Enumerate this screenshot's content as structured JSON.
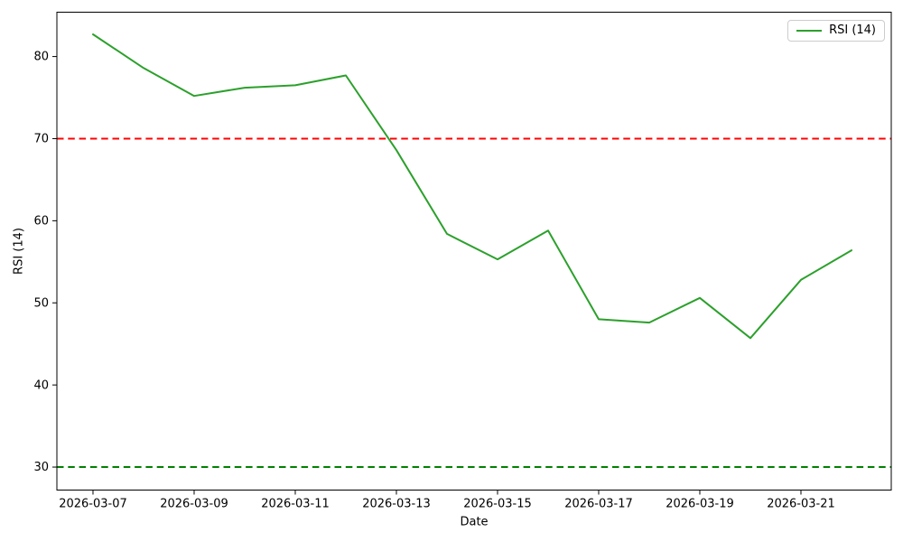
{
  "chart_data": {
    "type": "line",
    "title": "",
    "xlabel": "Date",
    "ylabel": "RSI (14)",
    "x": [
      "2026-03-07",
      "2026-03-08",
      "2026-03-09",
      "2026-03-10",
      "2026-03-11",
      "2026-03-12",
      "2026-03-13",
      "2026-03-14",
      "2026-03-15",
      "2026-03-16",
      "2026-03-17",
      "2026-03-18",
      "2026-03-19",
      "2026-03-20",
      "2026-03-21",
      "2026-03-22"
    ],
    "series": [
      {
        "name": "RSI (14)",
        "color": "#2ca02c",
        "style": "solid",
        "values": [
          82.7,
          78.6,
          75.2,
          76.2,
          76.5,
          77.7,
          68.6,
          58.4,
          55.3,
          58.8,
          48.0,
          47.6,
          50.6,
          45.7,
          52.8,
          56.4
        ]
      }
    ],
    "hlines": [
      {
        "name": "overbought-level",
        "value": 70,
        "color": "#ff0000",
        "style": "dashed"
      },
      {
        "name": "oversold-level",
        "value": 30,
        "color": "#008000",
        "style": "dashed"
      }
    ],
    "yticks": [
      30,
      40,
      50,
      60,
      70,
      80
    ],
    "xticks": [
      "2026-03-07",
      "2026-03-09",
      "2026-03-11",
      "2026-03-13",
      "2026-03-15",
      "2026-03-17",
      "2026-03-19",
      "2026-03-21"
    ],
    "ylim": [
      27.2,
      85.4
    ],
    "grid": false,
    "legend": {
      "position": "upper right",
      "entries": [
        "RSI (14)"
      ]
    },
    "colors": {
      "background": "#ffffff",
      "spine": "#000000",
      "tick_text": "#000000"
    }
  }
}
